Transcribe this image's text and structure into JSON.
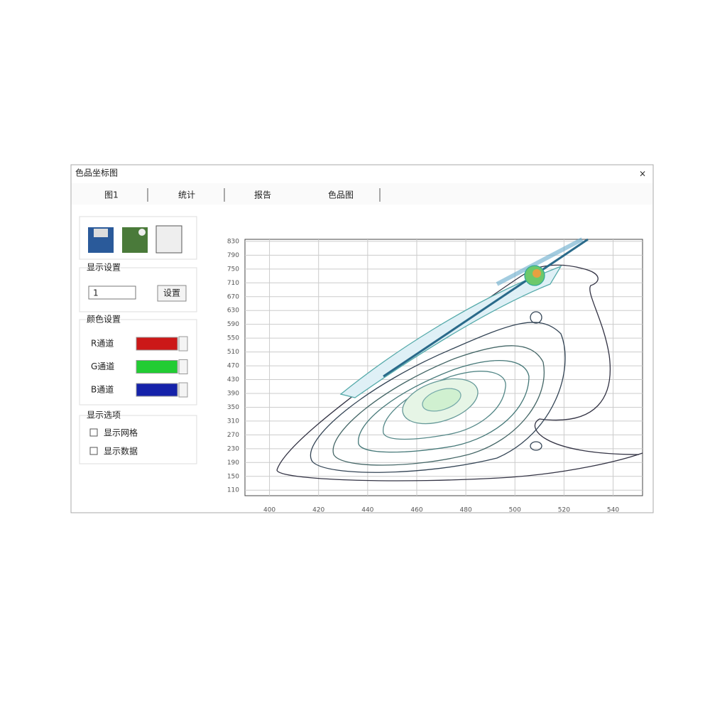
{
  "window": {
    "title": "色品坐标图",
    "close": "×"
  },
  "tabs": [
    "图1",
    "统计",
    "报告",
    "色品图"
  ],
  "panel": {
    "group1": {
      "title": "显示设置",
      "select": "1",
      "button": "设置"
    },
    "group2": {
      "title": "颜色设置",
      "rows": [
        {
          "label": "R通道",
          "color": "#cc1818"
        },
        {
          "label": "G通道",
          "color": "#22cc33"
        },
        {
          "label": "B通道",
          "color": "#1522aa"
        }
      ]
    },
    "group3": {
      "title": "显示选项",
      "checks": [
        "显示网格",
        "显示数据"
      ]
    }
  },
  "chart_data": {
    "type": "contour",
    "xlim": [
      390,
      552
    ],
    "ylim": [
      94,
      836
    ],
    "xticks": [
      400,
      420,
      440,
      460,
      480,
      500,
      520,
      540
    ],
    "yticks": [
      110,
      150,
      190,
      230,
      270,
      310,
      350,
      390,
      430,
      470,
      510,
      550,
      590,
      630,
      670,
      710,
      750,
      790,
      830
    ],
    "grid": true
  }
}
